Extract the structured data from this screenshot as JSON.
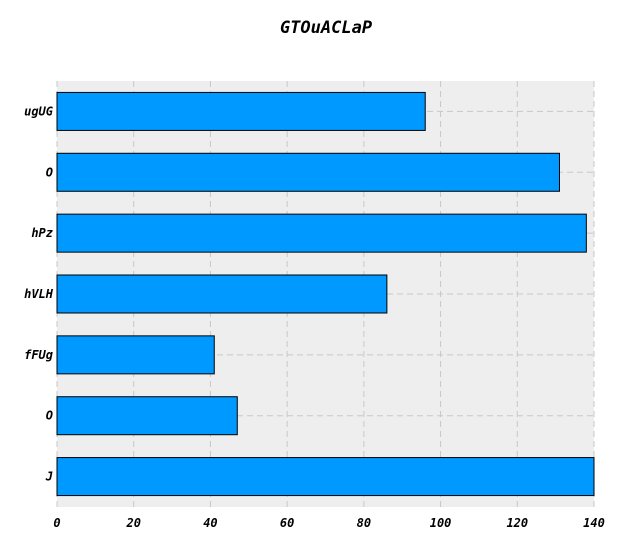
{
  "chart_data": {
    "type": "bar",
    "orientation": "horizontal",
    "title": "GTOuACLaP",
    "xlabel": "",
    "ylabel": "",
    "categories": [
      "ugUG",
      "O",
      "hPz",
      "hVLH",
      "fFUg",
      "O",
      "J"
    ],
    "values": [
      96,
      131,
      138,
      86,
      41,
      47,
      141
    ],
    "xlim": [
      0,
      140
    ],
    "xticks": [
      "0",
      "20",
      "40",
      "60",
      "80",
      "100",
      "120",
      "140"
    ],
    "grid": true,
    "legend": "none",
    "colors": {
      "bar": "#0099ff",
      "bar_edge": "#000000",
      "plot_bg": "#eeeeee",
      "grid": "#c8c8c8"
    }
  }
}
